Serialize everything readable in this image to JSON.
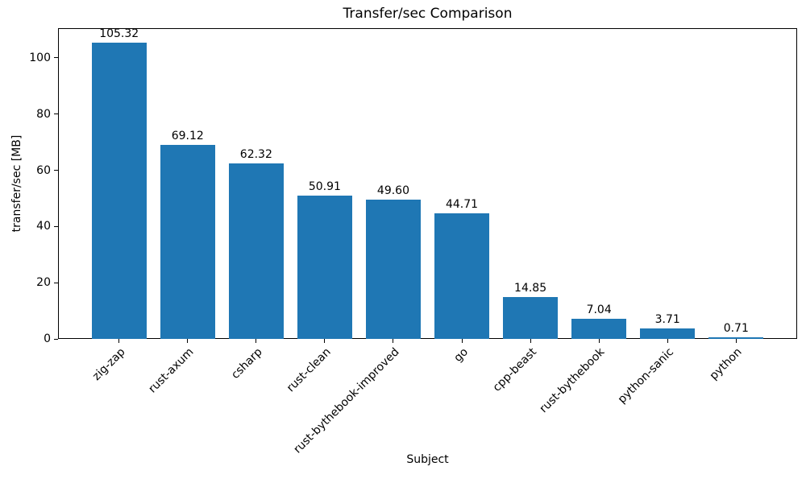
{
  "chart_data": {
    "type": "bar",
    "title": "Transfer/sec Comparison",
    "xlabel": "Subject",
    "ylabel": "transfer/sec [MB]",
    "categories": [
      "zig-zap",
      "rust-axum",
      "csharp",
      "rust-clean",
      "rust-bythebook-improved",
      "go",
      "cpp-beast",
      "rust-bythebook",
      "python-sanic",
      "python"
    ],
    "values": [
      105.32,
      69.12,
      62.32,
      50.91,
      49.6,
      44.71,
      14.85,
      7.04,
      3.71,
      0.71
    ],
    "value_labels": [
      "105.32",
      "69.12",
      "62.32",
      "50.91",
      "49.60",
      "44.71",
      "14.85",
      "7.04",
      "3.71",
      "0.71"
    ],
    "yticks": [
      0,
      20,
      40,
      60,
      80,
      100
    ],
    "ylim": [
      0,
      110.6
    ],
    "xlim_units": [
      -0.89,
      9.89
    ],
    "bar_width_fraction": 0.8,
    "x_tick_rotation_deg": 45,
    "bar_color": "#1f77b4",
    "axis_color": "#000000",
    "text_color": "#000000",
    "background_color": "#ffffff",
    "grid": false,
    "legend": null
  }
}
